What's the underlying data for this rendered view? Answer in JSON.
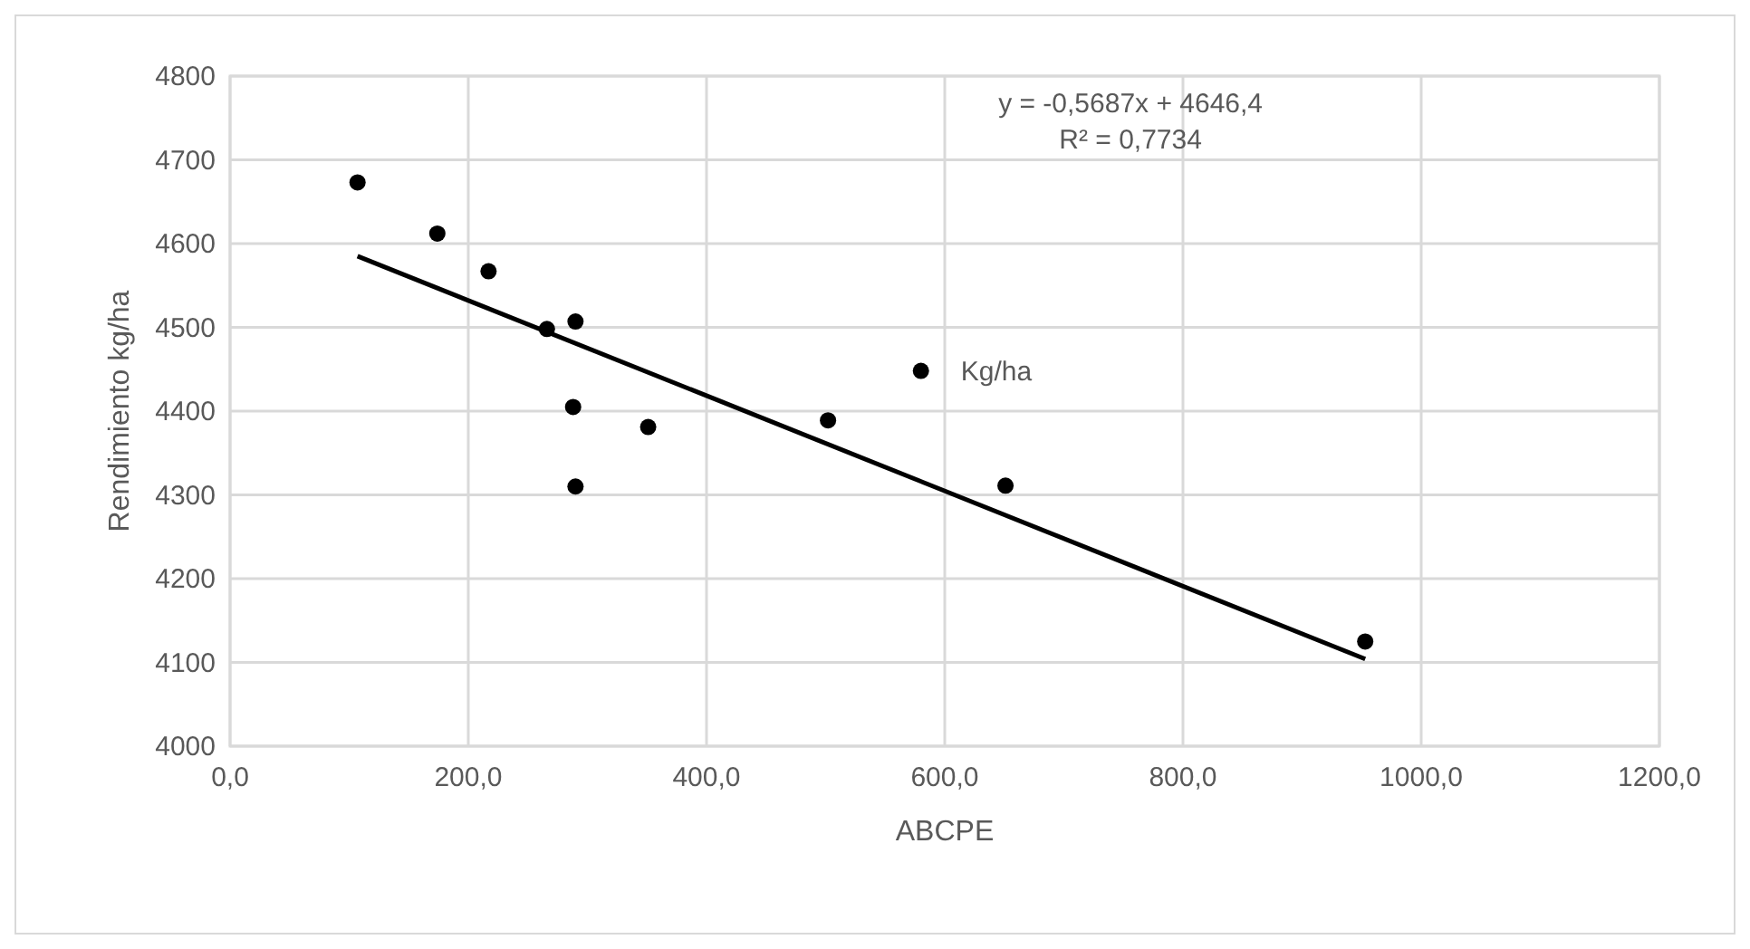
{
  "chart_data": {
    "type": "scatter",
    "xlabel": "ABCPE",
    "ylabel": "Rendimiento kg/ha",
    "xlim": [
      0,
      1200
    ],
    "xticks": [
      {
        "value": 0,
        "label": "0,0"
      },
      {
        "value": 200,
        "label": "200,0"
      },
      {
        "value": 400,
        "label": "400,0"
      },
      {
        "value": 600,
        "label": "600,0"
      },
      {
        "value": 800,
        "label": "800,0"
      },
      {
        "value": 1000,
        "label": "1000,0"
      },
      {
        "value": 1200,
        "label": "1200,0"
      }
    ],
    "ylim": [
      4000,
      4800
    ],
    "yticks": [
      4000,
      4100,
      4200,
      4300,
      4400,
      4500,
      4600,
      4700,
      4800
    ],
    "grid": true,
    "series": [
      {
        "name": "Kg/ha",
        "color": "#000000",
        "marker": "circle",
        "x": [
          107,
          174,
          217,
          266,
          290,
          288,
          351,
          290,
          502,
          580,
          651,
          953
        ],
        "values": [
          4673,
          4612,
          4567,
          4498,
          4507,
          4405,
          4381,
          4310,
          4389,
          4448,
          4311,
          4125
        ]
      },
      {
        "type": "line",
        "color": "#000000",
        "line_style": "solid",
        "marker": "none",
        "x": [
          107,
          953
        ],
        "values": [
          4585,
          4104
        ]
      }
    ],
    "annotations": [
      "y = -0,5687x + 4646,4",
      "R² = 0,7734"
    ]
  }
}
